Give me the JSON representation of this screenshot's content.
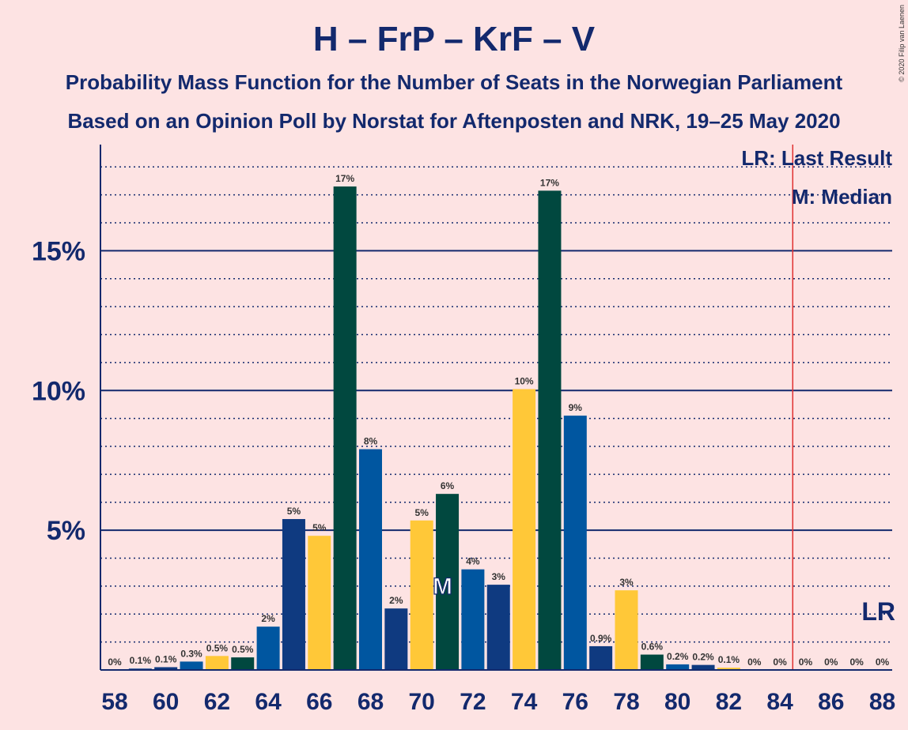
{
  "chart_data": {
    "type": "bar",
    "title": "H – FrP – KrF – V",
    "subtitle_1": "Probability Mass Function for the Number of Seats in the Norwegian Parliament",
    "subtitle_2": "Based on an Opinion Poll by Norstat for Aftenposten and NRK, 19–25 May 2020",
    "copyright": "© 2020 Filip van Laenen",
    "ylim": [
      0,
      18.8
    ],
    "ytick_values": [
      5,
      10,
      15
    ],
    "ytick_labels": [
      "5%",
      "10%",
      "15%"
    ],
    "xtick_labels": [
      "58",
      "60",
      "62",
      "64",
      "66",
      "68",
      "70",
      "72",
      "74",
      "76",
      "78",
      "80",
      "82",
      "84",
      "86",
      "88"
    ],
    "seats": [
      58,
      59,
      60,
      61,
      62,
      63,
      64,
      65,
      66,
      67,
      68,
      69,
      70,
      71,
      72,
      73,
      74,
      75,
      76,
      77,
      78,
      79,
      80,
      81,
      82,
      83,
      84,
      85,
      86,
      87,
      88
    ],
    "values": [
      0,
      0.05,
      0.1,
      0.3,
      0.5,
      0.45,
      1.55,
      5.4,
      4.8,
      17.3,
      7.9,
      2.2,
      5.35,
      6.3,
      3.6,
      3.05,
      10.05,
      17.15,
      9.1,
      0.85,
      2.85,
      0.55,
      0.2,
      0.18,
      0.08,
      0,
      0,
      0,
      0,
      0,
      0
    ],
    "labels": [
      "0%",
      "0.1%",
      "0.1%",
      "0.3%",
      "0.5%",
      "0.5%",
      "2%",
      "5%",
      "5%",
      "17%",
      "8%",
      "2%",
      "5%",
      "6%",
      "4%",
      "3%",
      "10%",
      "17%",
      "9%",
      "0.9%",
      "3%",
      "0.6%",
      "0.2%",
      "0.2%",
      "0.1%",
      "0%",
      "0%",
      "0%",
      "0%",
      "0%",
      "0%"
    ],
    "colors": [
      "#e6a7a7",
      "#1a4e97",
      "#0f3a80",
      "#0056a0",
      "#ffc838",
      "#01483f",
      "#0056a0",
      "#0f3a80",
      "#ffc838",
      "#01483f",
      "#0056a0",
      "#0f3a80",
      "#ffc838",
      "#01483f",
      "#0056a0",
      "#0f3a80",
      "#ffc838",
      "#01483f",
      "#0056a0",
      "#0f3a80",
      "#ffc838",
      "#01483f",
      "#0056a0",
      "#0f3a80",
      "#ffc838",
      "#01483f",
      "#0056a0",
      "#0f3a80",
      "#ffc838",
      "#01483f",
      "#0056a0"
    ],
    "median_seat": 71,
    "median_marker": "M",
    "last_result_seat": 85,
    "last_result_marker": "LR",
    "legend": {
      "placement": "top-right",
      "last_result": "LR: Last Result",
      "median": "M: Median"
    },
    "grid": true
  }
}
